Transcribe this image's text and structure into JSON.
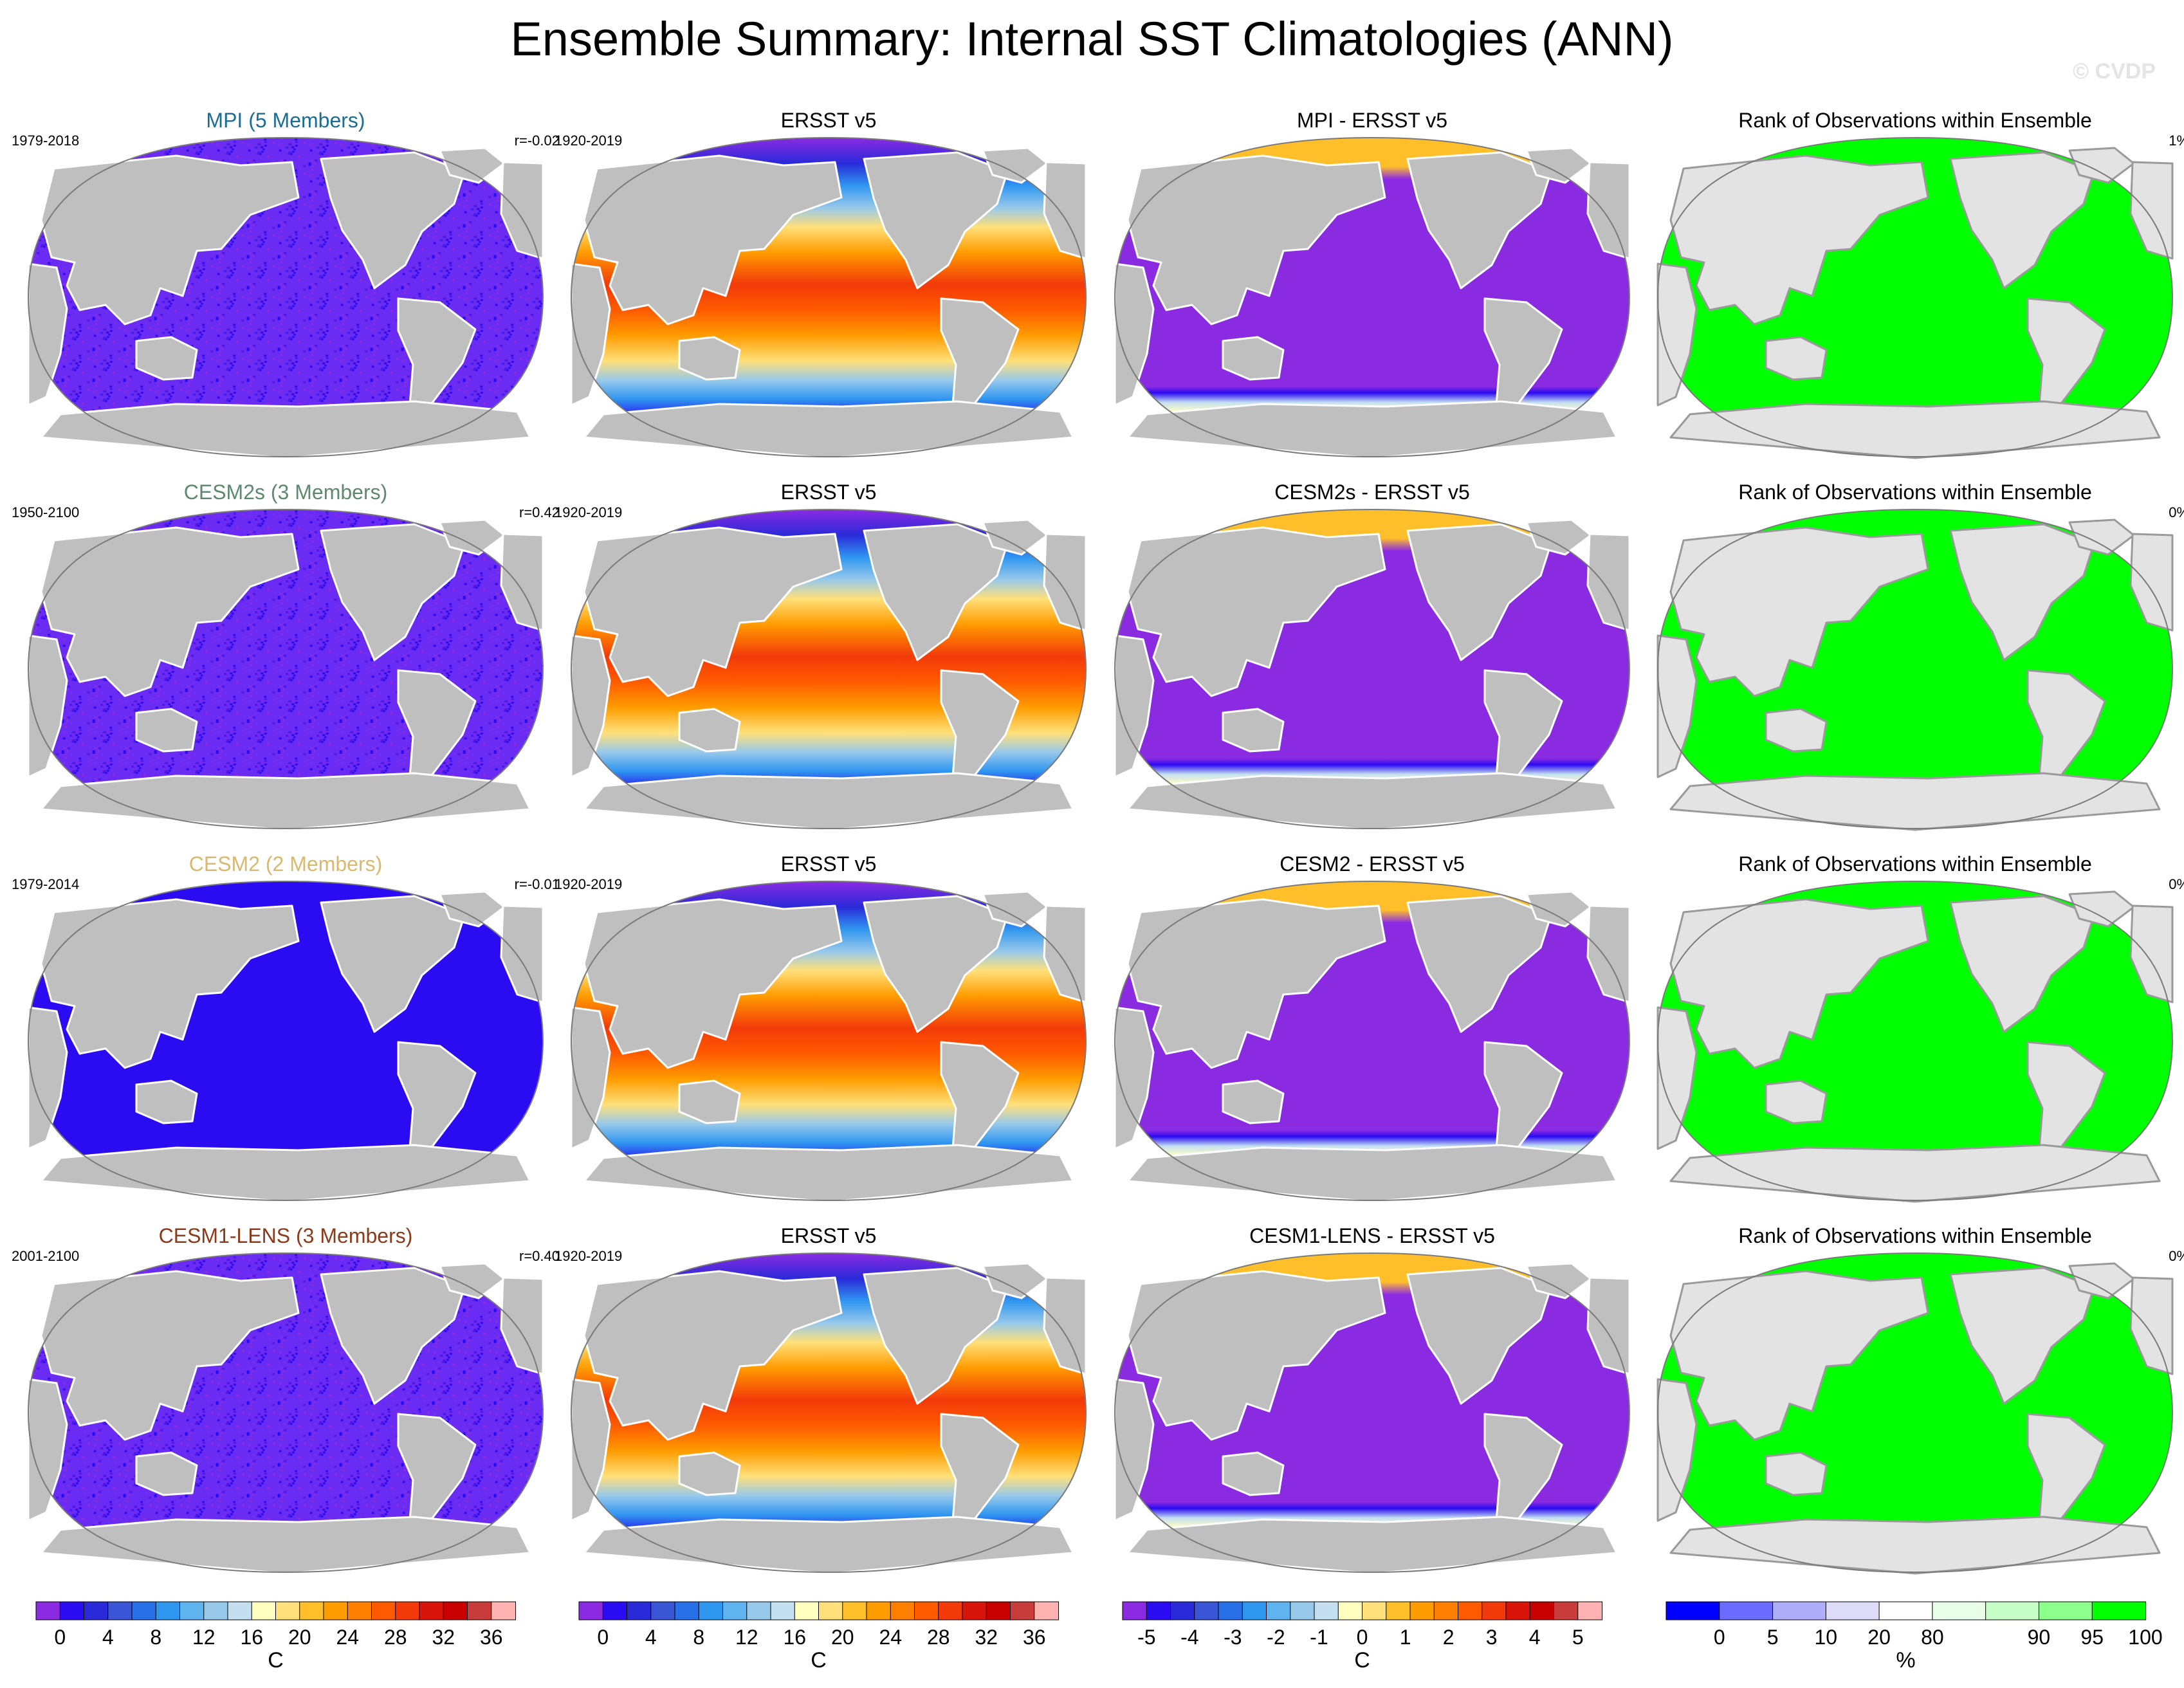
{
  "figure": {
    "title": "Ensemble Summary: Internal SST Climatologies (ANN)",
    "watermark": "© CVDP"
  },
  "chart_data": {
    "type": "heatmap",
    "map_projection": "Robinson (Pacific-centered)",
    "colors": {
      "land": "#bfbfbf",
      "rank_land": "#e3e3e3",
      "coast": "#ffffff",
      "uniform_blue": "#2a0bf2",
      "purple": "#8a2be2"
    },
    "rows": [
      {
        "ensemble": {
          "title": "MPI (5 Members)",
          "title_color": "#1a6e96",
          "period": "1979-2018",
          "corr": "r=-0.02",
          "field": "speckled"
        },
        "obs": {
          "title": "ERSST v5",
          "period": "1920-2019"
        },
        "diff": {
          "title": "MPI - ERSST v5"
        },
        "rank": {
          "title": "Rank of Observations within Ensemble",
          "value": "1%"
        }
      },
      {
        "ensemble": {
          "title": "CESM2s (3 Members)",
          "title_color": "#5d8a6e",
          "period": "1950-2100",
          "corr": "r=0.42",
          "field": "speckled"
        },
        "obs": {
          "title": "ERSST v5",
          "period": "1920-2019"
        },
        "diff": {
          "title": "CESM2s - ERSST v5"
        },
        "rank": {
          "title": "Rank of Observations within Ensemble",
          "value": "0%"
        }
      },
      {
        "ensemble": {
          "title": "CESM2 (2 Members)",
          "title_color": "#d9b96e",
          "period": "1979-2014",
          "corr": "r=-0.01",
          "field": "uniform"
        },
        "obs": {
          "title": "ERSST v5",
          "period": "1920-2019"
        },
        "diff": {
          "title": "CESM2 - ERSST v5"
        },
        "rank": {
          "title": "Rank of Observations within Ensemble",
          "value": "0%"
        }
      },
      {
        "ensemble": {
          "title": "CESM1-LENS (3 Members)",
          "title_color": "#8b3a1a",
          "period": "2001-2100",
          "corr": "r=0.40",
          "field": "speckled"
        },
        "obs": {
          "title": "ERSST v5",
          "period": "1920-2019"
        },
        "diff": {
          "title": "CESM1-LENS - ERSST v5"
        },
        "rank": {
          "title": "Rank of Observations within Ensemble",
          "value": "0%"
        }
      }
    ],
    "colorbars": [
      {
        "units": "C",
        "colors": [
          "#8a2be2",
          "#2a0bf2",
          "#2a2ad9",
          "#3a55d6",
          "#2870e8",
          "#2f96f0",
          "#5fb4f0",
          "#98c9ea",
          "#c4dff0",
          "#ffffc0",
          "#ffe07a",
          "#ffbf2a",
          "#ff9c00",
          "#ff7f00",
          "#ff5a00",
          "#f23a0a",
          "#d9140a",
          "#c80000",
          "#c83c3c",
          "#ffb2b2"
        ],
        "labels": [
          "0",
          "4",
          "8",
          "12",
          "16",
          "20",
          "24",
          "28",
          "32",
          "36"
        ]
      },
      {
        "units": "C",
        "colors": [
          "#8a2be2",
          "#2a0bf2",
          "#2a2ad9",
          "#3a55d6",
          "#2870e8",
          "#2f96f0",
          "#5fb4f0",
          "#98c9ea",
          "#c4dff0",
          "#ffffc0",
          "#ffe07a",
          "#ffbf2a",
          "#ff9c00",
          "#ff7f00",
          "#ff5a00",
          "#f23a0a",
          "#d9140a",
          "#c80000",
          "#c83c3c",
          "#ffb2b2"
        ],
        "labels": [
          "0",
          "4",
          "8",
          "12",
          "16",
          "20",
          "24",
          "28",
          "32",
          "36"
        ]
      },
      {
        "units": "C",
        "colors": [
          "#8a2be2",
          "#2a0bf2",
          "#2a2ad9",
          "#3a55d6",
          "#2870e8",
          "#2f96f0",
          "#5fb4f0",
          "#98c9ea",
          "#c4dff0",
          "#ffffc0",
          "#ffe07a",
          "#ffbf2a",
          "#ff9c00",
          "#ff7f00",
          "#ff5a00",
          "#f23a0a",
          "#d9140a",
          "#c80000",
          "#c83c3c",
          "#ffb2b2"
        ],
        "labels": [
          "-5",
          "-4",
          "-3",
          "-2",
          "-1",
          "0",
          "1",
          "2",
          "3",
          "4",
          "5"
        ]
      },
      {
        "units": "%",
        "colors": [
          "#0000ff",
          "#6b6bff",
          "#aeaefa",
          "#dcdcf8",
          "#ffffff",
          "#e8ffe8",
          "#c8ffc8",
          "#8cff8c",
          "#00ff00"
        ],
        "labels": [
          "0",
          "5",
          "10",
          "20",
          "80",
          "90",
          "95",
          "100"
        ]
      }
    ]
  }
}
